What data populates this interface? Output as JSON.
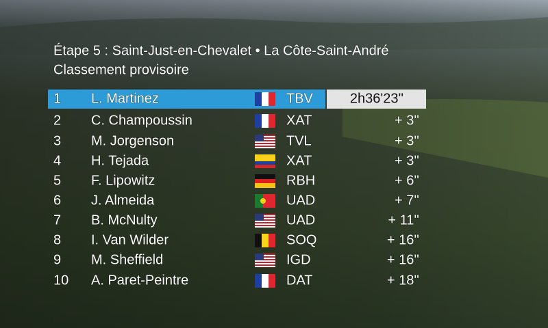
{
  "header": {
    "title": "Étape 5 : Saint-Just-en-Chevalet • La Côte-Saint-André",
    "subtitle": "Classement provisoire"
  },
  "table": {
    "rows": [
      [
        1,
        "L. Martinez",
        "TBV",
        "2h36'23''"
      ],
      [
        2,
        "C. Champoussin",
        "XAT",
        "+ 3''"
      ],
      [
        3,
        "M. Jorgenson",
        "TVL",
        "+ 3''"
      ],
      [
        4,
        "H. Tejada",
        "XAT",
        "+ 3''"
      ],
      [
        5,
        "F. Lipowitz",
        "RBH",
        "+ 6''"
      ],
      [
        6,
        "J. Almeida",
        "UAD",
        "+ 7''"
      ],
      [
        7,
        "B. McNulty",
        "UAD",
        "+ 11''"
      ],
      [
        8,
        "I. Van Wilder",
        "SOQ",
        "+ 16''"
      ],
      [
        9,
        "M. Sheffield",
        "IGD",
        "+ 16''"
      ],
      [
        10,
        "A. Paret-Peintre",
        "DAT",
        "+ 18''"
      ]
    ]
  }
}
